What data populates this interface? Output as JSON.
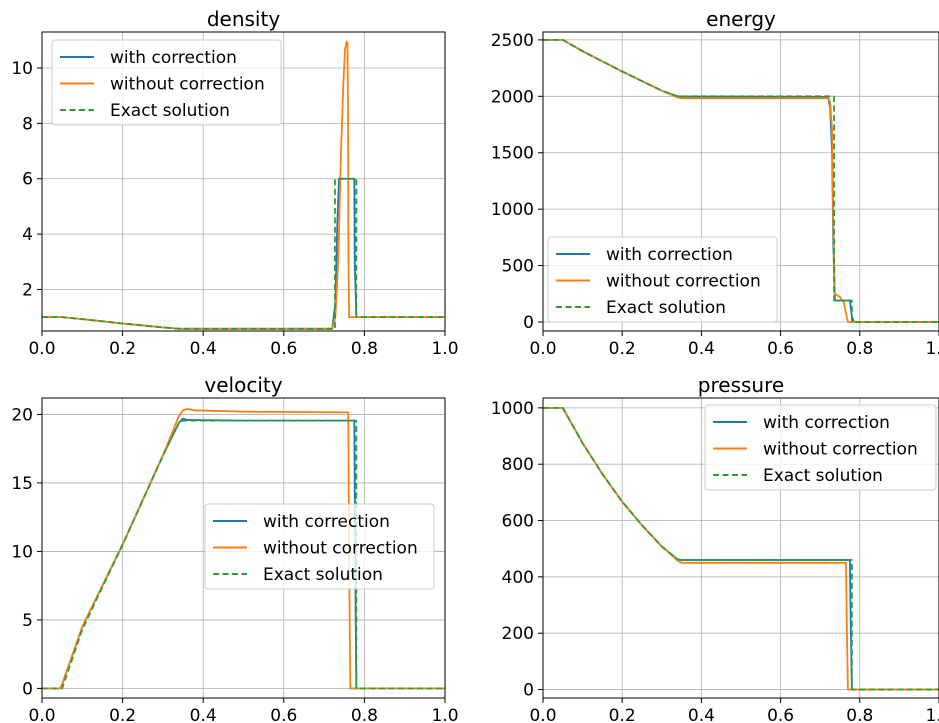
{
  "legend_labels": [
    "with correction",
    "without correction",
    "Exact solution"
  ],
  "colors": {
    "with": "#1f77b4",
    "without": "#ff7f0e",
    "exact": "#2ca02c"
  },
  "chart_data": [
    {
      "type": "line",
      "title": "density",
      "xlim": [
        0,
        1
      ],
      "ylim": [
        0.5,
        11.3
      ],
      "xticks": [
        0.0,
        0.2,
        0.4,
        0.6,
        0.8,
        1.0
      ],
      "xtick_labels": [
        "0.0",
        "0.2",
        "0.4",
        "0.6",
        "0.8",
        "1.0"
      ],
      "yticks": [
        2,
        4,
        6,
        8,
        10
      ],
      "ytick_labels": [
        "2",
        "4",
        "6",
        "8",
        "10"
      ],
      "grid": true,
      "legend_position": "upper-left",
      "series": [
        {
          "name": "with correction",
          "style": "solid",
          "x": [
            0.0,
            0.05,
            0.1,
            0.2,
            0.3,
            0.34,
            0.5,
            0.72,
            0.728,
            0.733,
            0.737,
            0.745,
            0.775,
            0.776,
            0.78,
            1.0
          ],
          "y": [
            1.0,
            1.0,
            0.93,
            0.77,
            0.63,
            0.58,
            0.58,
            0.58,
            1.5,
            4.5,
            6.0,
            6.0,
            6.0,
            3.0,
            1.0,
            1.0
          ]
        },
        {
          "name": "without correction",
          "style": "solid",
          "x": [
            0.0,
            0.05,
            0.1,
            0.2,
            0.3,
            0.34,
            0.5,
            0.72,
            0.728,
            0.735,
            0.742,
            0.748,
            0.752,
            0.756,
            0.758,
            0.7595,
            0.7605,
            0.762,
            0.764,
            1.0
          ],
          "y": [
            1.0,
            1.0,
            0.93,
            0.77,
            0.63,
            0.58,
            0.58,
            0.58,
            1.0,
            3.0,
            7.0,
            9.5,
            10.7,
            10.95,
            10.9,
            8.0,
            3.0,
            1.0,
            1.0,
            1.0
          ]
        },
        {
          "name": "Exact solution",
          "style": "dashed",
          "x": [
            0.0,
            0.05,
            0.1,
            0.2,
            0.3,
            0.34,
            0.5,
            0.727,
            0.727,
            0.78,
            0.78,
            1.0
          ],
          "y": [
            1.0,
            1.0,
            0.93,
            0.77,
            0.63,
            0.58,
            0.58,
            0.58,
            6.0,
            6.0,
            1.0,
            1.0
          ]
        }
      ]
    },
    {
      "type": "line",
      "title": "energy",
      "xlim": [
        0,
        1
      ],
      "ylim": [
        -80,
        2570
      ],
      "xticks": [
        0.0,
        0.2,
        0.4,
        0.6,
        0.8,
        1.0
      ],
      "xtick_labels": [
        "0.0",
        "0.2",
        "0.4",
        "0.6",
        "0.8",
        "1.0"
      ],
      "yticks": [
        0,
        500,
        1000,
        1500,
        2000,
        2500
      ],
      "ytick_labels": [
        "0",
        "500",
        "1000",
        "1500",
        "2000",
        "2500"
      ],
      "grid": true,
      "legend_position": "lower-left",
      "series": [
        {
          "name": "with correction",
          "style": "solid",
          "x": [
            0.0,
            0.05,
            0.1,
            0.2,
            0.3,
            0.34,
            0.35,
            0.5,
            0.72,
            0.725,
            0.73,
            0.733,
            0.737,
            0.745,
            0.775,
            0.78,
            0.785,
            1.0
          ],
          "y": [
            2500,
            2500,
            2400,
            2220,
            2050,
            2000,
            1998,
            1998,
            1995,
            1900,
            1500,
            700,
            190,
            190,
            190,
            50,
            0,
            0
          ]
        },
        {
          "name": "without correction",
          "style": "solid",
          "x": [
            0.0,
            0.05,
            0.1,
            0.2,
            0.3,
            0.34,
            0.35,
            0.5,
            0.72,
            0.725,
            0.73,
            0.733,
            0.737,
            0.75,
            0.76,
            0.765,
            0.77,
            1.0
          ],
          "y": [
            2500,
            2500,
            2400,
            2220,
            2050,
            1990,
            1983,
            1983,
            1983,
            1950,
            1700,
            900,
            250,
            220,
            170,
            80,
            0,
            0
          ]
        },
        {
          "name": "Exact solution",
          "style": "dashed",
          "x": [
            0.0,
            0.05,
            0.1,
            0.2,
            0.3,
            0.34,
            0.35,
            0.5,
            0.735,
            0.735,
            0.78,
            0.78,
            1.0
          ],
          "y": [
            2500,
            2500,
            2400,
            2220,
            2050,
            2000,
            2000,
            2000,
            2000,
            190,
            190,
            0,
            0
          ]
        }
      ]
    },
    {
      "type": "line",
      "title": "velocity",
      "xlim": [
        0,
        1
      ],
      "ylim": [
        -0.7,
        21.2
      ],
      "xticks": [
        0.0,
        0.2,
        0.4,
        0.6,
        0.8,
        1.0
      ],
      "xtick_labels": [
        "0.0",
        "0.2",
        "0.4",
        "0.6",
        "0.8",
        "1.0"
      ],
      "yticks": [
        0,
        5,
        10,
        15,
        20
      ],
      "ytick_labels": [
        "0",
        "5",
        "10",
        "15",
        "20"
      ],
      "grid": true,
      "legend_position": "center-right",
      "series": [
        {
          "name": "with correction",
          "style": "solid",
          "x": [
            0.0,
            0.045,
            0.05,
            0.1,
            0.2,
            0.3,
            0.34,
            0.35,
            0.36,
            0.5,
            0.775,
            0.777,
            0.78,
            1.0
          ],
          "y": [
            0,
            0,
            0.3,
            4.5,
            10.5,
            17.0,
            19.4,
            19.7,
            19.6,
            19.55,
            19.55,
            10.0,
            0,
            0
          ]
        },
        {
          "name": "without correction",
          "style": "solid",
          "x": [
            0.0,
            0.045,
            0.05,
            0.1,
            0.2,
            0.3,
            0.34,
            0.35,
            0.36,
            0.38,
            0.5,
            0.76,
            0.762,
            0.765,
            1.0
          ],
          "y": [
            0,
            0,
            0.3,
            4.5,
            10.5,
            17.0,
            19.9,
            20.3,
            20.4,
            20.3,
            20.2,
            20.15,
            10.0,
            0,
            0
          ]
        },
        {
          "name": "Exact solution",
          "style": "dashed",
          "x": [
            0.0,
            0.05,
            0.1,
            0.2,
            0.3,
            0.34,
            0.35,
            0.5,
            0.78,
            0.78,
            1.0
          ],
          "y": [
            0,
            0,
            4.3,
            10.5,
            17.0,
            19.4,
            19.55,
            19.55,
            19.55,
            0,
            0
          ]
        }
      ]
    },
    {
      "type": "line",
      "title": "pressure",
      "xlim": [
        0,
        1
      ],
      "ylim": [
        -30,
        1035
      ],
      "xticks": [
        0.0,
        0.2,
        0.4,
        0.6,
        0.8,
        1.0
      ],
      "xtick_labels": [
        "0.0",
        "0.2",
        "0.4",
        "0.6",
        "0.8",
        "1.0"
      ],
      "yticks": [
        0,
        200,
        400,
        600,
        800,
        1000
      ],
      "ytick_labels": [
        "0",
        "200",
        "400",
        "600",
        "800",
        "1000"
      ],
      "grid": true,
      "legend_position": "upper-right",
      "series": [
        {
          "name": "with correction",
          "style": "solid",
          "x": [
            0.0,
            0.05,
            0.1,
            0.15,
            0.2,
            0.25,
            0.3,
            0.34,
            0.35,
            0.5,
            0.775,
            0.777,
            0.78,
            1.0
          ],
          "y": [
            1000,
            1000,
            875,
            765,
            667,
            583,
            508,
            462,
            460,
            460,
            460,
            250,
            0,
            0
          ]
        },
        {
          "name": "without correction",
          "style": "solid",
          "x": [
            0.0,
            0.05,
            0.1,
            0.15,
            0.2,
            0.25,
            0.3,
            0.34,
            0.35,
            0.5,
            0.765,
            0.767,
            0.77,
            1.0
          ],
          "y": [
            1000,
            1000,
            875,
            765,
            667,
            583,
            508,
            458,
            450,
            450,
            450,
            250,
            0,
            0
          ]
        },
        {
          "name": "Exact solution",
          "style": "dashed",
          "x": [
            0.0,
            0.05,
            0.1,
            0.15,
            0.2,
            0.25,
            0.3,
            0.34,
            0.35,
            0.5,
            0.78,
            0.78,
            1.0
          ],
          "y": [
            1000,
            1000,
            875,
            765,
            667,
            583,
            508,
            462,
            460,
            460,
            460,
            0,
            0
          ]
        }
      ]
    }
  ]
}
